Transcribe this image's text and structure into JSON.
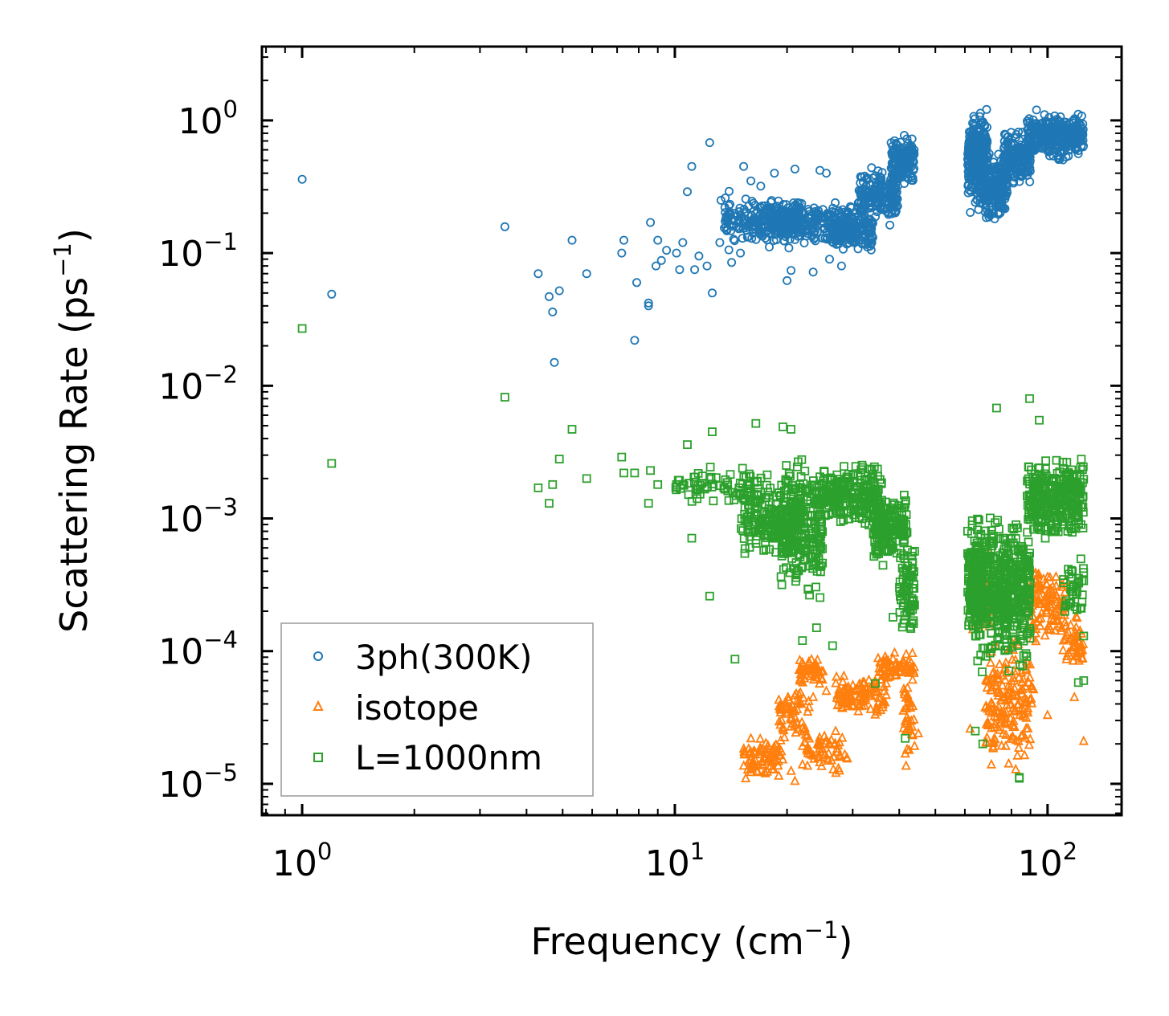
{
  "chart_data": {
    "type": "scatter",
    "xscale": "log",
    "yscale": "log",
    "xlim": [
      0.78,
      158
    ],
    "ylim": [
      5.8e-06,
      3.6
    ],
    "xlabel": {
      "main": "Frequency (cm",
      "sup": "−1",
      "end": ")"
    },
    "ylabel": {
      "main": "Scattering Rate (ps",
      "sup": "−1",
      "end": ")"
    },
    "x_ticks": [
      {
        "value": 1,
        "base": "10",
        "exp": "0"
      },
      {
        "value": 10,
        "base": "10",
        "exp": "1"
      },
      {
        "value": 100,
        "base": "10",
        "exp": "2"
      }
    ],
    "y_ticks": [
      {
        "value": 1,
        "base": "10",
        "exp": "0"
      },
      {
        "value": 0.1,
        "base": "10",
        "exp": "−1"
      },
      {
        "value": 0.01,
        "base": "10",
        "exp": "−2"
      },
      {
        "value": 0.001,
        "base": "10",
        "exp": "−3"
      },
      {
        "value": 0.0001,
        "base": "10",
        "exp": "−4"
      },
      {
        "value": 1e-05,
        "base": "10",
        "exp": "−5"
      }
    ],
    "legend": {
      "location": "lower left"
    },
    "series": [
      {
        "name": "3ph(300K)",
        "marker": "circle",
        "color": "#1f77b4",
        "points": [
          [
            1.0,
            0.36
          ],
          [
            1.2,
            0.049
          ],
          [
            3.5,
            0.158
          ],
          [
            4.3,
            0.07
          ],
          [
            4.6,
            0.047
          ],
          [
            4.7,
            0.036
          ],
          [
            4.75,
            0.015
          ],
          [
            4.9,
            0.052
          ],
          [
            5.3,
            0.125
          ],
          [
            5.8,
            0.07
          ],
          [
            7.2,
            0.1
          ],
          [
            7.3,
            0.125
          ],
          [
            7.8,
            0.022
          ],
          [
            7.9,
            0.06
          ],
          [
            8.5,
            0.042
          ],
          [
            8.5,
            0.04
          ],
          [
            8.6,
            0.17
          ],
          [
            8.9,
            0.08
          ],
          [
            9.0,
            0.125
          ],
          [
            9.2,
            0.088
          ],
          [
            9.5,
            0.105
          ],
          [
            10.1,
            0.1
          ],
          [
            10.3,
            0.075
          ],
          [
            10.5,
            0.12
          ],
          [
            10.8,
            0.29
          ],
          [
            11.1,
            0.45
          ],
          [
            11.3,
            0.075
          ],
          [
            11.6,
            0.095
          ],
          [
            12.2,
            0.08
          ],
          [
            12.4,
            0.68
          ],
          [
            12.6,
            0.05
          ],
          [
            13.2,
            0.12
          ],
          [
            14.2,
            0.085
          ],
          [
            20.0,
            0.062
          ],
          [
            20.5,
            0.074
          ],
          [
            23.5,
            0.072
          ],
          [
            24.5,
            0.42
          ],
          [
            18.5,
            0.4
          ],
          [
            17.0,
            0.32
          ],
          [
            21.0,
            0.43
          ],
          [
            25.5,
            0.4
          ],
          [
            13.3,
            0.25
          ],
          [
            15.3,
            0.45
          ],
          [
            14.5,
            0.2
          ],
          [
            16.0,
            0.35
          ],
          [
            26.0,
            0.09
          ],
          [
            28.0,
            0.08
          ],
          [
            15.0,
            0.1
          ]
        ],
        "clusters": [
          {
            "x_range": [
              13.5,
              22
            ],
            "y_range": [
              0.1,
              0.3
            ],
            "n": 200,
            "seed": 11
          },
          {
            "x_range": [
              18,
              30
            ],
            "y_range": [
              0.11,
              0.26
            ],
            "n": 260,
            "seed": 12
          },
          {
            "x_range": [
              26,
              34
            ],
            "y_range": [
              0.1,
              0.21
            ],
            "n": 140,
            "seed": 13
          },
          {
            "x_range": [
              31,
              40
            ],
            "y_range": [
              0.15,
              0.5
            ],
            "n": 180,
            "seed": 14
          },
          {
            "x_range": [
              38,
              44
            ],
            "y_range": [
              0.3,
              0.85
            ],
            "n": 150,
            "seed": 15
          },
          {
            "x_range": [
              61,
              69
            ],
            "y_range": [
              0.16,
              1.6
            ],
            "n": 300,
            "seed": 16
          },
          {
            "x_range": [
              68,
              78
            ],
            "y_range": [
              0.15,
              0.65
            ],
            "n": 200,
            "seed": 17
          },
          {
            "x_range": [
              76,
              90
            ],
            "y_range": [
              0.3,
              0.9
            ],
            "n": 180,
            "seed": 18
          },
          {
            "x_range": [
              88,
              125
            ],
            "y_range": [
              0.45,
              1.3
            ],
            "n": 350,
            "seed": 19
          }
        ]
      },
      {
        "name": "isotope",
        "marker": "triangle",
        "color": "#ff7f0e",
        "points": [
          [
            15.5,
            1.1e-05
          ],
          [
            16.0,
            1.3e-05
          ],
          [
            17.5,
            1.2e-05
          ],
          [
            19.0,
            1.15e-05
          ],
          [
            20.5,
            1.25e-05
          ],
          [
            21.0,
            1.05e-05
          ],
          [
            23.5,
            4.5e-05
          ],
          [
            25.5,
            5e-05
          ],
          [
            29.0,
            4.8e-05
          ],
          [
            45.0,
            2.4e-05
          ],
          [
            62.0,
            2.6e-05
          ],
          [
            125.0,
            2.1e-05
          ],
          [
            118.0,
            4.5e-05
          ],
          [
            100.0,
            3.3e-05
          ],
          [
            110.0,
            0.0002
          ],
          [
            70.0,
            0.00055
          ],
          [
            16.0,
            2.2e-05
          ],
          [
            18.0,
            1.6e-05
          ],
          [
            22.0,
            1.4e-05
          ],
          [
            27.0,
            2.5e-05
          ]
        ],
        "clusters": [
          {
            "x_range": [
              15.3,
              19.5
            ],
            "y_range": [
              1.1e-05,
              2.4e-05
            ],
            "n": 80,
            "seed": 21
          },
          {
            "x_range": [
              19,
              23
            ],
            "y_range": [
              2e-05,
              6e-05
            ],
            "n": 60,
            "seed": 22
          },
          {
            "x_range": [
              21.5,
              25
            ],
            "y_range": [
              5e-05,
              0.0001
            ],
            "n": 45,
            "seed": 23
          },
          {
            "x_range": [
              22,
              29
            ],
            "y_range": [
              1.05e-05,
              3e-05
            ],
            "n": 60,
            "seed": 24
          },
          {
            "x_range": [
              27,
              37
            ],
            "y_range": [
              3e-05,
              7e-05
            ],
            "n": 110,
            "seed": 25
          },
          {
            "x_range": [
              35,
              44
            ],
            "y_range": [
              5.5e-05,
              0.000105
            ],
            "n": 70,
            "seed": 26
          },
          {
            "x_range": [
              41,
              44
            ],
            "y_range": [
              1e-05,
              0.0001
            ],
            "n": 35,
            "seed": 27
          },
          {
            "x_range": [
              62,
              70
            ],
            "y_range": [
              0.00012,
              0.0006
            ],
            "n": 80,
            "seed": 28
          },
          {
            "x_range": [
              68,
              78
            ],
            "y_range": [
              1e-05,
              0.00015
            ],
            "n": 90,
            "seed": 29
          },
          {
            "x_range": [
              78,
              92
            ],
            "y_range": [
              1.1e-05,
              0.00015
            ],
            "n": 90,
            "seed": 30
          },
          {
            "x_range": [
              88,
              112
            ],
            "y_range": [
              0.0001,
              0.0005
            ],
            "n": 110,
            "seed": 31
          },
          {
            "x_range": [
              110,
              125
            ],
            "y_range": [
              6e-05,
              0.00025
            ],
            "n": 45,
            "seed": 32
          }
        ]
      },
      {
        "name": "L=1000nm",
        "marker": "square",
        "color": "#2ca02c",
        "points": [
          [
            1.0,
            0.027
          ],
          [
            1.2,
            0.0026
          ],
          [
            3.5,
            0.0082
          ],
          [
            4.3,
            0.0017
          ],
          [
            4.6,
            0.0013
          ],
          [
            4.7,
            0.0018
          ],
          [
            4.9,
            0.0028
          ],
          [
            5.3,
            0.0047
          ],
          [
            5.8,
            0.002
          ],
          [
            7.2,
            0.0029
          ],
          [
            7.3,
            0.0022
          ],
          [
            7.8,
            0.0022
          ],
          [
            8.5,
            0.0013
          ],
          [
            8.6,
            0.0023
          ],
          [
            9.0,
            0.0018
          ],
          [
            10.1,
            0.0018
          ],
          [
            10.8,
            0.0036
          ],
          [
            11.1,
            0.00071
          ],
          [
            12.4,
            0.00026
          ],
          [
            12.6,
            0.0045
          ],
          [
            14.5,
            8.7e-05
          ],
          [
            22.0,
            0.00012
          ],
          [
            24.0,
            0.00015
          ],
          [
            34.5,
            5.7e-05
          ],
          [
            38.5,
            0.00018
          ],
          [
            41.5,
            2.2e-05
          ],
          [
            26.5,
            0.00011
          ],
          [
            16.5,
            0.0052
          ],
          [
            19.5,
            0.0049
          ],
          [
            20.5,
            0.0047
          ],
          [
            73.0,
            0.0068
          ],
          [
            89.5,
            0.008
          ],
          [
            84.0,
            1.1e-05
          ],
          [
            84.0,
            1.12e-05
          ],
          [
            64.0,
            2.5e-05
          ],
          [
            67.0,
            2e-05
          ],
          [
            95.0,
            0.0055
          ],
          [
            125.0,
            6e-05
          ],
          [
            125.0,
            0.00013
          ],
          [
            121.0,
            5.8e-05
          ]
        ],
        "clusters": [
          {
            "x_range": [
              10,
              16
            ],
            "y_range": [
              0.0012,
              0.0026
            ],
            "n": 60,
            "seed": 41
          },
          {
            "x_range": [
              15,
              22
            ],
            "y_range": [
              0.0004,
              0.0025
            ],
            "n": 230,
            "seed": 42
          },
          {
            "x_range": [
              19,
              25
            ],
            "y_range": [
              0.0002,
              0.0035
            ],
            "n": 230,
            "seed": 43
          },
          {
            "x_range": [
              24,
              36
            ],
            "y_range": [
              0.0008,
              0.0028
            ],
            "n": 260,
            "seed": 44
          },
          {
            "x_range": [
              34,
              42
            ],
            "y_range": [
              0.0004,
              0.0018
            ],
            "n": 160,
            "seed": 45
          },
          {
            "x_range": [
              40,
              44
            ],
            "y_range": [
              0.0001,
              0.0008
            ],
            "n": 70,
            "seed": 46
          },
          {
            "x_range": [
              61,
              67
            ],
            "y_range": [
              0.0001,
              0.0012
            ],
            "n": 180,
            "seed": 47
          },
          {
            "x_range": [
              64,
              78
            ],
            "y_range": [
              6e-05,
              0.0015
            ],
            "n": 260,
            "seed": 48
          },
          {
            "x_range": [
              76,
              90
            ],
            "y_range": [
              6e-05,
              0.0012
            ],
            "n": 220,
            "seed": 49
          },
          {
            "x_range": [
              88,
              125
            ],
            "y_range": [
              0.0006,
              0.0032
            ],
            "n": 330,
            "seed": 50
          },
          {
            "x_range": [
              110,
              125
            ],
            "y_range": [
              0.00015,
              0.0006
            ],
            "n": 40,
            "seed": 51
          }
        ]
      }
    ]
  }
}
